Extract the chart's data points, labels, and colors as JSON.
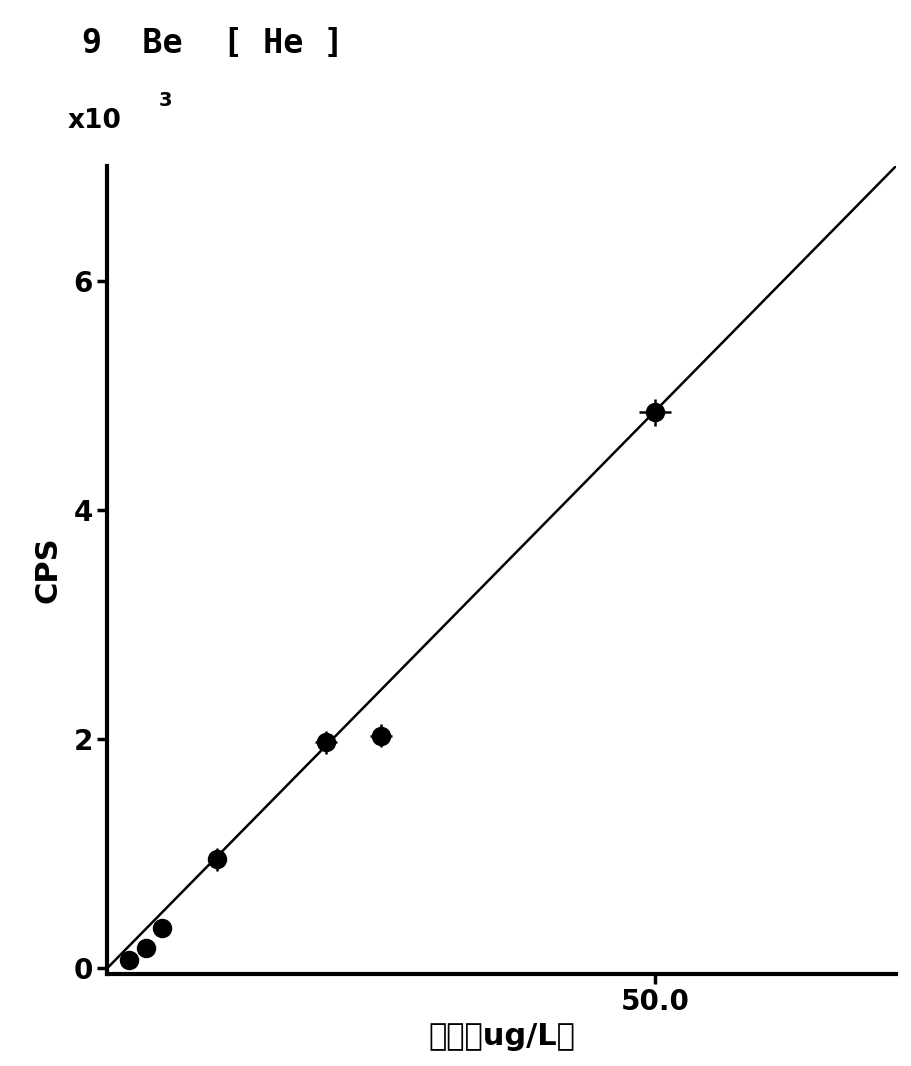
{
  "title": "9  Be  [ He ]",
  "ylabel": "CPS",
  "xlabel": "浓度（ug/L）",
  "x_data": [
    2.0,
    3.5,
    5.0,
    10.0,
    20.0,
    25.0,
    50.0
  ],
  "y_data": [
    0.07,
    0.18,
    0.35,
    0.95,
    1.97,
    2.03,
    4.85
  ],
  "y_err": [
    0.03,
    0.04,
    0.06,
    0.1,
    0.1,
    0.1,
    0.12
  ],
  "x_err": [
    0.3,
    0.4,
    0.5,
    0.8,
    1.0,
    1.0,
    1.5
  ],
  "line_x": [
    0.0,
    72.0
  ],
  "line_y": [
    0.0,
    7.0
  ],
  "xlim": [
    0,
    72
  ],
  "ylim": [
    -0.05,
    7.0
  ],
  "yticks": [
    0,
    2,
    4,
    6
  ],
  "xticks": [
    50.0
  ],
  "xticklabels": [
    "50.0"
  ],
  "bg_color": "#ffffff",
  "text_color": "#000000",
  "line_color": "#000000",
  "marker_color": "#000000",
  "title_fontsize": 24,
  "axis_label_fontsize": 22,
  "tick_fontsize": 20,
  "scale_fontsize": 19,
  "spine_linewidth": 3.0,
  "line_linewidth": 1.8,
  "marker_size": 13
}
